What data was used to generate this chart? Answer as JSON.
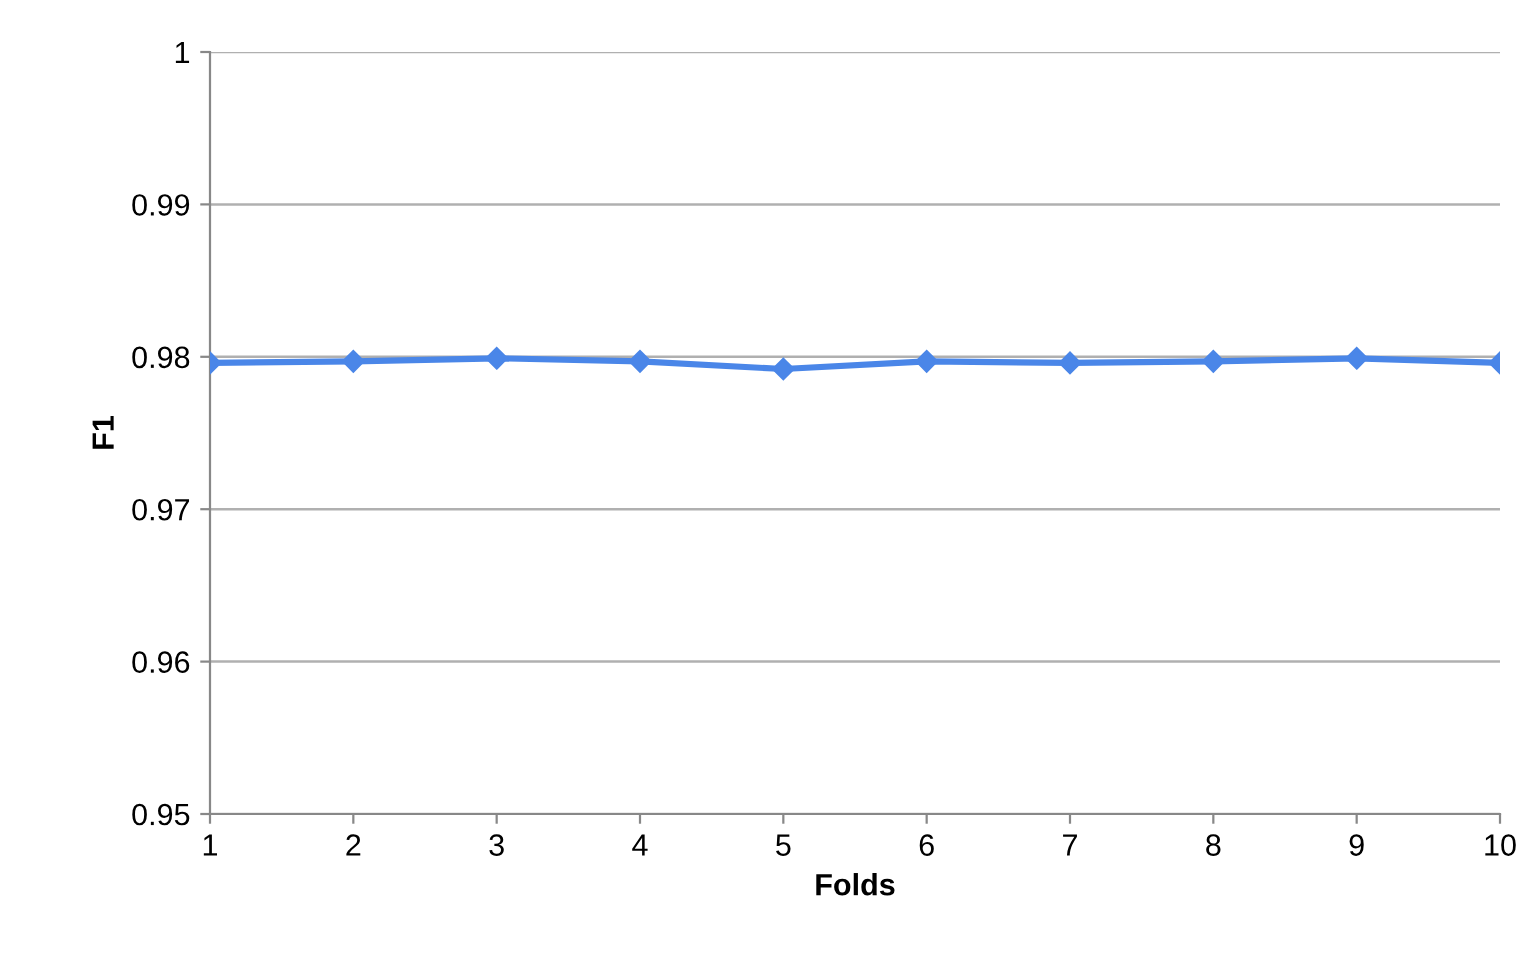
{
  "chart_data": {
    "type": "line",
    "xlabel": "Folds",
    "ylabel": "F1",
    "x": [
      1,
      2,
      3,
      4,
      5,
      6,
      7,
      8,
      9,
      10
    ],
    "series": [
      {
        "color": "#4a86e8",
        "values": [
          0.9796,
          0.9797,
          0.9799,
          0.9797,
          0.9792,
          0.9797,
          0.9796,
          0.9797,
          0.9799,
          0.9796
        ]
      }
    ],
    "xlim": [
      1,
      10
    ],
    "xticks": [
      1,
      2,
      3,
      4,
      5,
      6,
      7,
      8,
      9,
      10
    ],
    "ylim": [
      0.95,
      1
    ],
    "yticks": [
      0.95,
      0.96,
      0.97,
      0.98,
      0.99,
      1
    ],
    "grid": "y",
    "marker": "diamond",
    "line_style": "solid"
  }
}
